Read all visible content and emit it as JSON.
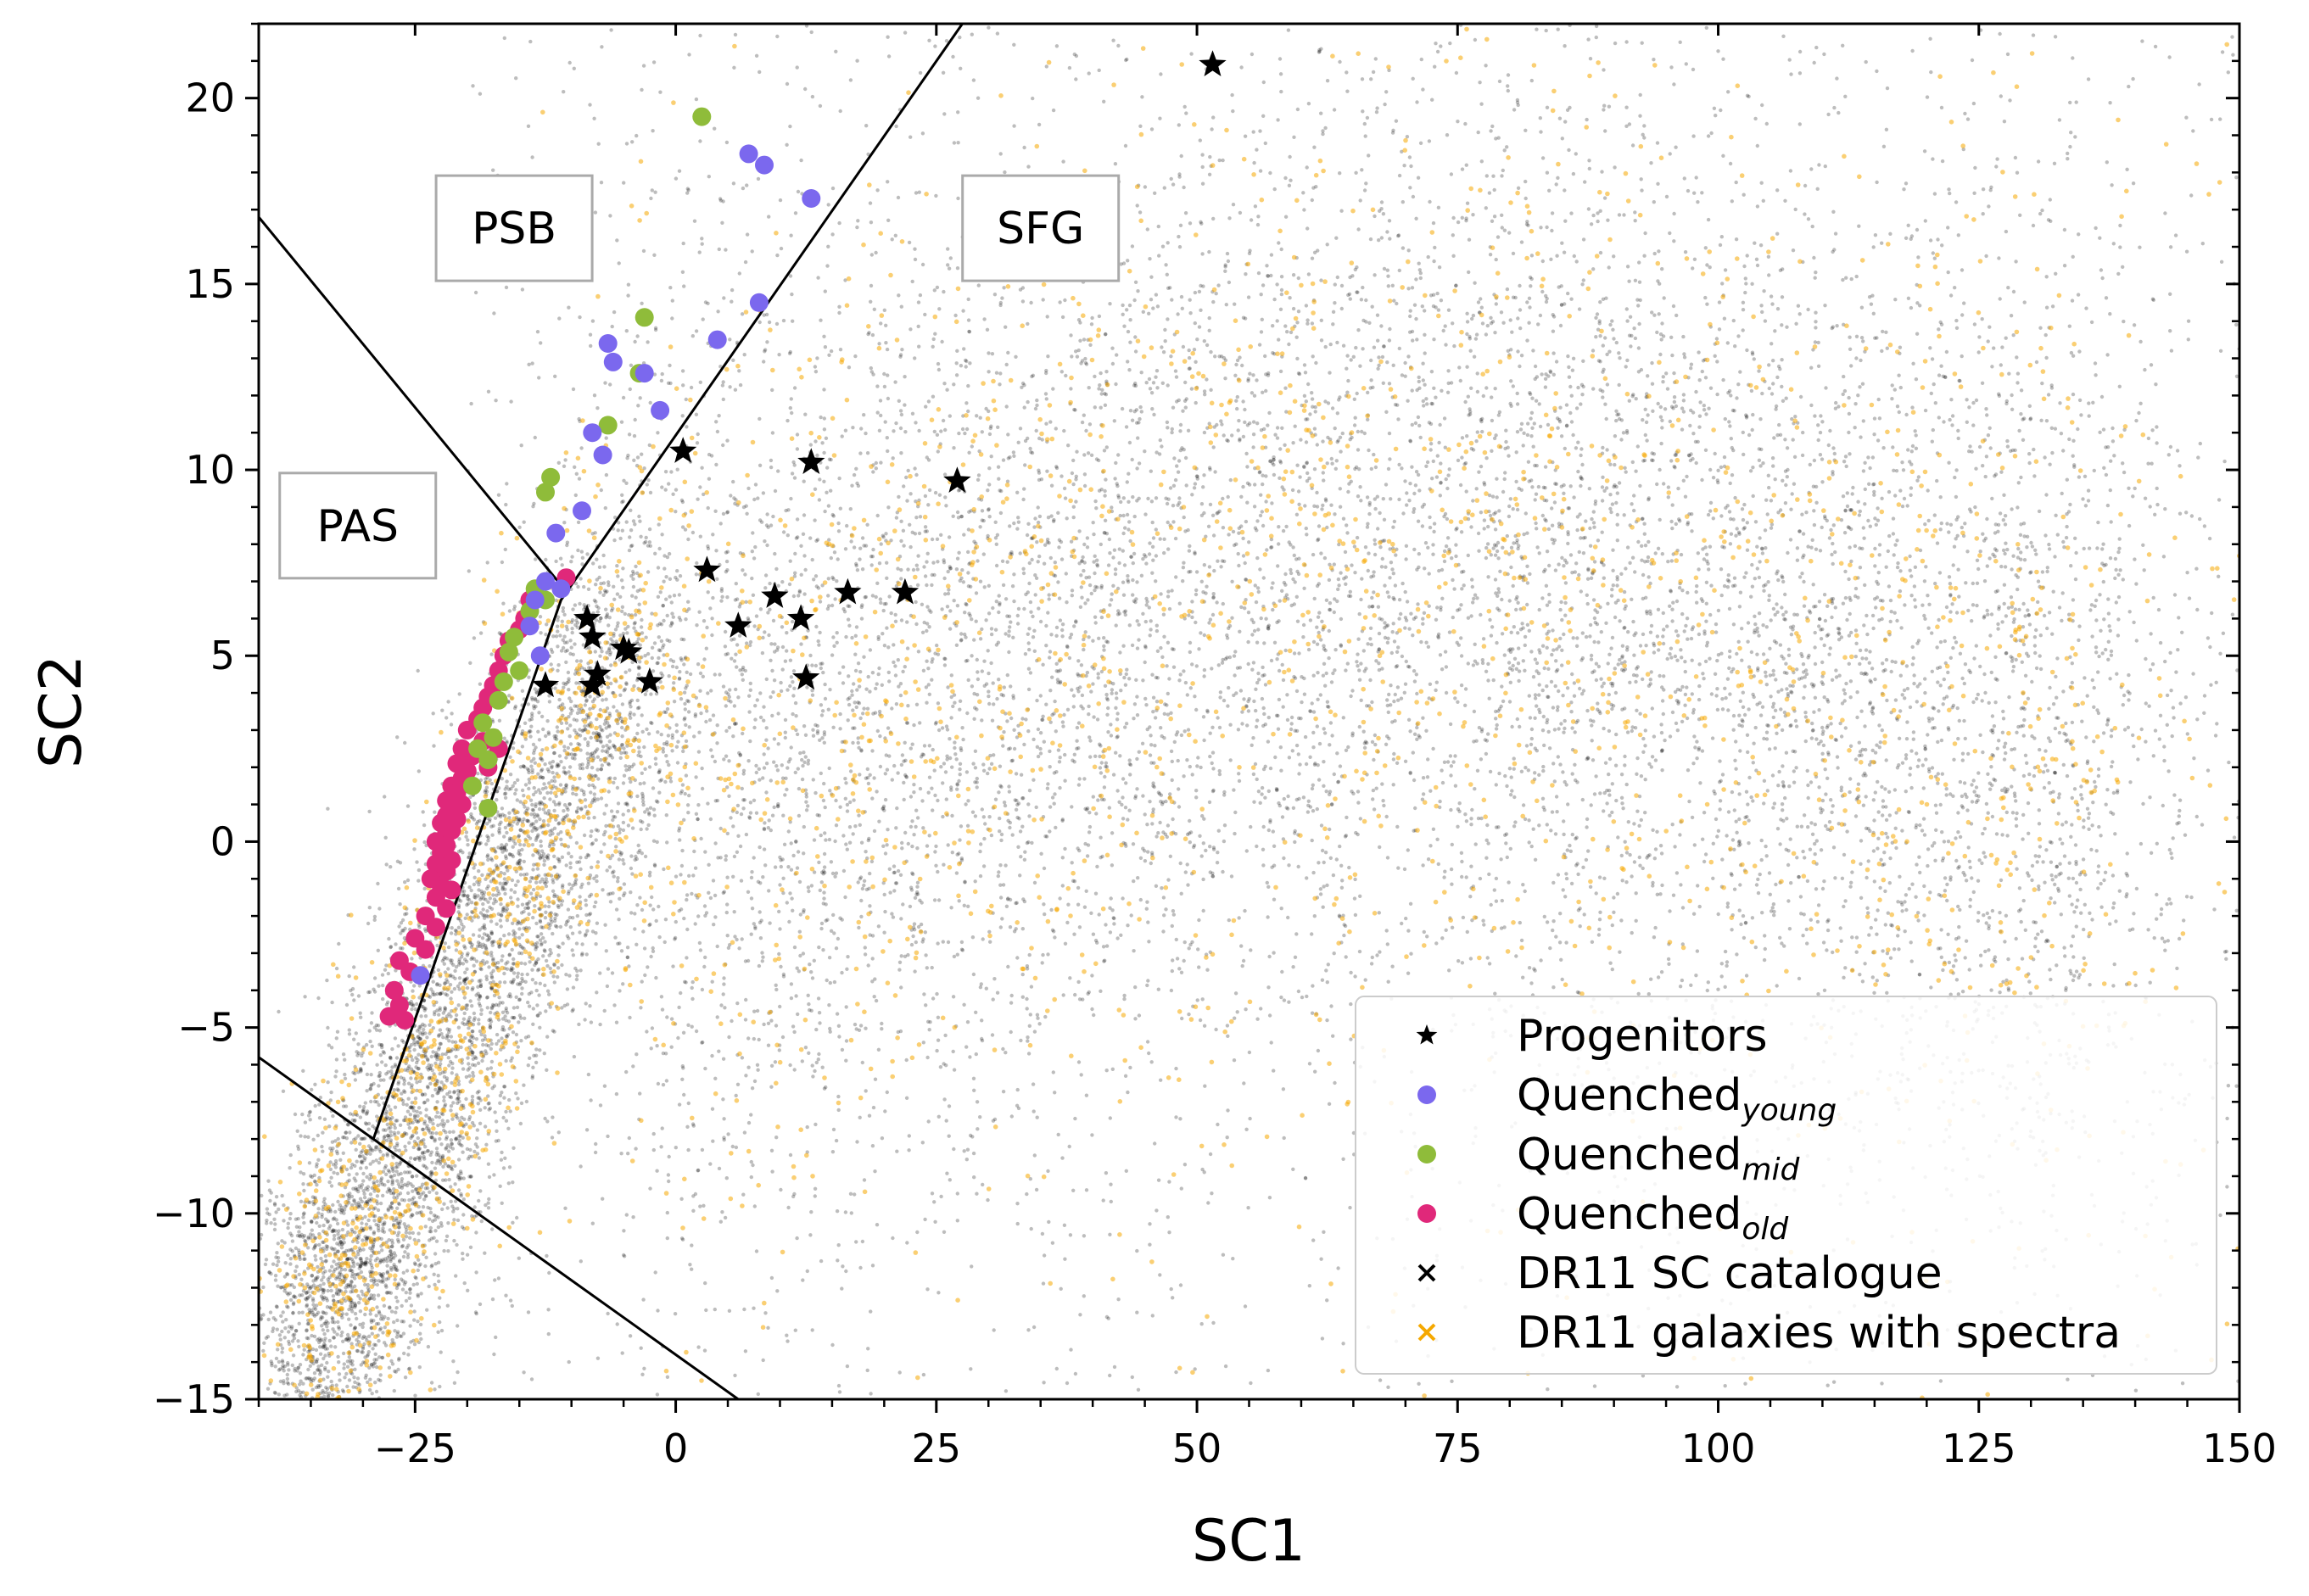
{
  "chart_data": {
    "type": "scatter",
    "title": "",
    "xlabel": "SC1",
    "ylabel": "SC2",
    "xlim": [
      -40,
      150
    ],
    "ylim": [
      -15,
      22
    ],
    "xticks": [
      -25,
      0,
      25,
      50,
      75,
      100,
      125,
      150
    ],
    "yticks": [
      -15,
      -10,
      -5,
      0,
      5,
      10,
      15,
      20
    ],
    "xtick_labels": [
      "−25",
      "0",
      "25",
      "50",
      "75",
      "100",
      "125",
      "150"
    ],
    "ytick_labels": [
      "−15",
      "−10",
      "−5",
      "0",
      "5",
      "10",
      "15",
      "20"
    ],
    "grid": false,
    "legend_position": "lower-right",
    "region_labels": [
      {
        "text": "PSB",
        "x": -15.5,
        "y": 16.5
      },
      {
        "text": "SFG",
        "x": 35,
        "y": 16.5
      },
      {
        "text": "PAS",
        "x": -30.5,
        "y": 8.5
      }
    ],
    "boundary_lines": [
      {
        "name": "psb-pas-boundary",
        "points": [
          [
            -40,
            16.8
          ],
          [
            -11,
            6.9
          ]
        ]
      },
      {
        "name": "sfg-boundary",
        "points": [
          [
            -29,
            -8
          ],
          [
            -11,
            6.5
          ],
          [
            27.5,
            22
          ]
        ]
      },
      {
        "name": "lower-boundary",
        "points": [
          [
            -40,
            -5.8
          ],
          [
            6,
            -15
          ]
        ]
      }
    ],
    "series": [
      {
        "name": "Progenitors",
        "label": "Progenitors",
        "subscript": "",
        "marker": "star",
        "color": "#000000",
        "points": [
          [
            51.5,
            20.9
          ],
          [
            0.7,
            10.5
          ],
          [
            13,
            10.2
          ],
          [
            27,
            9.7
          ],
          [
            3,
            7.3
          ],
          [
            9.5,
            6.6
          ],
          [
            16.5,
            6.7
          ],
          [
            22,
            6.7
          ],
          [
            -8.5,
            6.0
          ],
          [
            -8,
            5.5
          ],
          [
            6,
            5.8
          ],
          [
            12,
            6.0
          ],
          [
            -5,
            5.2
          ],
          [
            -4.5,
            5.1
          ],
          [
            -7.5,
            4.5
          ],
          [
            -8,
            4.2
          ],
          [
            -12.5,
            4.2
          ],
          [
            -2.5,
            4.3
          ],
          [
            12.5,
            4.4
          ]
        ]
      },
      {
        "name": "Quenched_young",
        "label": "Quenched",
        "subscript": "young",
        "marker": "circle",
        "color": "#7b68ee",
        "points": [
          [
            7,
            18.5
          ],
          [
            8.5,
            18.2
          ],
          [
            13,
            17.3
          ],
          [
            8,
            14.5
          ],
          [
            -6.5,
            13.4
          ],
          [
            -6,
            12.9
          ],
          [
            4,
            13.5
          ],
          [
            -3,
            12.6
          ],
          [
            -1.5,
            11.6
          ],
          [
            -8,
            11.0
          ],
          [
            -7,
            10.4
          ],
          [
            -9,
            8.9
          ],
          [
            -11.5,
            8.3
          ],
          [
            -12.5,
            7.0
          ],
          [
            -11,
            6.8
          ],
          [
            -13.5,
            6.5
          ],
          [
            -14,
            5.8
          ],
          [
            -13,
            5.0
          ],
          [
            -24.5,
            -3.6
          ]
        ]
      },
      {
        "name": "Quenched_mid",
        "label": "Quenched",
        "subscript": "mid",
        "marker": "circle",
        "color": "#8fbc3a",
        "points": [
          [
            2.5,
            19.5
          ],
          [
            -3,
            14.1
          ],
          [
            -3.5,
            12.6
          ],
          [
            -6.5,
            11.2
          ],
          [
            -12,
            9.8
          ],
          [
            -12.5,
            9.4
          ],
          [
            -13.5,
            6.8
          ],
          [
            -12.5,
            6.5
          ],
          [
            -14,
            6.2
          ],
          [
            -15.5,
            5.5
          ],
          [
            -16,
            5.1
          ],
          [
            -15,
            4.6
          ],
          [
            -16.5,
            4.3
          ],
          [
            -17,
            3.8
          ],
          [
            -18.5,
            3.2
          ],
          [
            -17.5,
            2.8
          ],
          [
            -19,
            2.5
          ],
          [
            -18,
            2.2
          ],
          [
            -19.5,
            1.5
          ],
          [
            -18,
            0.9
          ]
        ]
      },
      {
        "name": "Quenched_old",
        "label": "Quenched",
        "subscript": "old",
        "marker": "circle",
        "color": "#e0287a",
        "points": [
          [
            -10.5,
            7.1
          ],
          [
            -14,
            6.5
          ],
          [
            -14.5,
            6.0
          ],
          [
            -15,
            5.7
          ],
          [
            -16,
            5.4
          ],
          [
            -16.5,
            5.0
          ],
          [
            -17,
            4.6
          ],
          [
            -17.5,
            4.2
          ],
          [
            -18,
            3.9
          ],
          [
            -18.5,
            3.6
          ],
          [
            -19,
            3.3
          ],
          [
            -20,
            3.0
          ],
          [
            -18.5,
            2.7
          ],
          [
            -20.5,
            2.5
          ],
          [
            -19.5,
            2.3
          ],
          [
            -21,
            2.1
          ],
          [
            -20,
            1.9
          ],
          [
            -20.5,
            1.7
          ],
          [
            -21.5,
            1.5
          ],
          [
            -21,
            1.3
          ],
          [
            -22,
            1.1
          ],
          [
            -20.5,
            1.0
          ],
          [
            -21.5,
            0.9
          ],
          [
            -22,
            0.7
          ],
          [
            -21,
            0.6
          ],
          [
            -22.5,
            0.5
          ],
          [
            -21.5,
            0.3
          ],
          [
            -22,
            0.2
          ],
          [
            -23,
            0.0
          ],
          [
            -22,
            -0.1
          ],
          [
            -22.5,
            -0.3
          ],
          [
            -21.5,
            -0.5
          ],
          [
            -23,
            -0.6
          ],
          [
            -22,
            -0.8
          ],
          [
            -23.5,
            -1.0
          ],
          [
            -22.5,
            -1.2
          ],
          [
            -21.5,
            -1.3
          ],
          [
            -23,
            -1.5
          ],
          [
            -22,
            -1.8
          ],
          [
            -24,
            -2.0
          ],
          [
            -23,
            -2.3
          ],
          [
            -25,
            -2.6
          ],
          [
            -24,
            -2.9
          ],
          [
            -26.5,
            -3.2
          ],
          [
            -25.5,
            -3.5
          ],
          [
            -27,
            -4.0
          ],
          [
            -26.5,
            -4.4
          ],
          [
            -27.5,
            -4.7
          ],
          [
            -26,
            -4.8
          ],
          [
            -18,
            2.0
          ],
          [
            -17,
            2.5
          ]
        ]
      }
    ],
    "background_series": [
      {
        "name": "DR11 SC catalogue",
        "label": "DR11 SC catalogue",
        "marker": "x",
        "color": "#000000"
      },
      {
        "name": "DR11 galaxies with spectra",
        "label": "DR11 galaxies with spectra",
        "marker": "x",
        "color": "#f5a800"
      }
    ]
  }
}
